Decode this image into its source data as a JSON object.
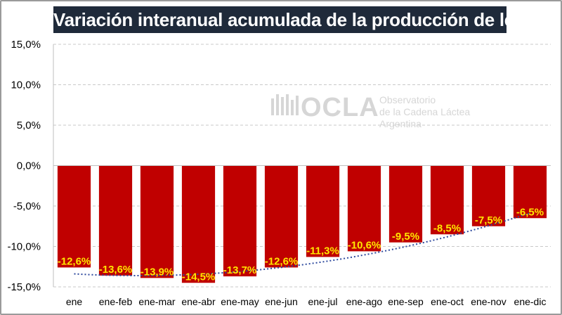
{
  "chart_data": {
    "type": "bar",
    "title": "Variación interanual acumulada de la producción de leche",
    "categories": [
      "ene",
      "ene-feb",
      "ene-mar",
      "ene-abr",
      "ene-may",
      "ene-jun",
      "ene-jul",
      "ene-ago",
      "ene-sep",
      "ene-oct",
      "ene-nov",
      "ene-dic"
    ],
    "values": [
      -12.6,
      -13.6,
      -13.9,
      -14.5,
      -13.7,
      -12.6,
      -11.3,
      -10.6,
      -9.5,
      -8.5,
      -7.5,
      -6.5
    ],
    "data_labels": [
      "-12,6%",
      "-13,6%",
      "-13,9%",
      "-14,5%",
      "-13,7%",
      "-12,6%",
      "-11,3%",
      "-10,6%",
      "-9,5%",
      "-8,5%",
      "-7,5%",
      "-6,5%"
    ],
    "ylim": [
      -15,
      15
    ],
    "yticks": [
      15,
      10,
      5,
      0,
      -5,
      -10,
      -15
    ],
    "ytick_labels": [
      "15,0%",
      "10,0%",
      "5,0%",
      "0,0%",
      "-5,0%",
      "-10,0%",
      "-15,0%"
    ],
    "grid": true,
    "trendline": "polynomial",
    "xlabel": "",
    "ylabel": ""
  },
  "colors": {
    "bar": "#c00000",
    "label": "#ffe600",
    "trend": "#2e4a9e",
    "grid": "#c8c8c8"
  },
  "watermark": {
    "logo": "OCLA",
    "line1": "Observatorio",
    "line2": "de la Cadena Láctea",
    "line3": "Argentina"
  }
}
